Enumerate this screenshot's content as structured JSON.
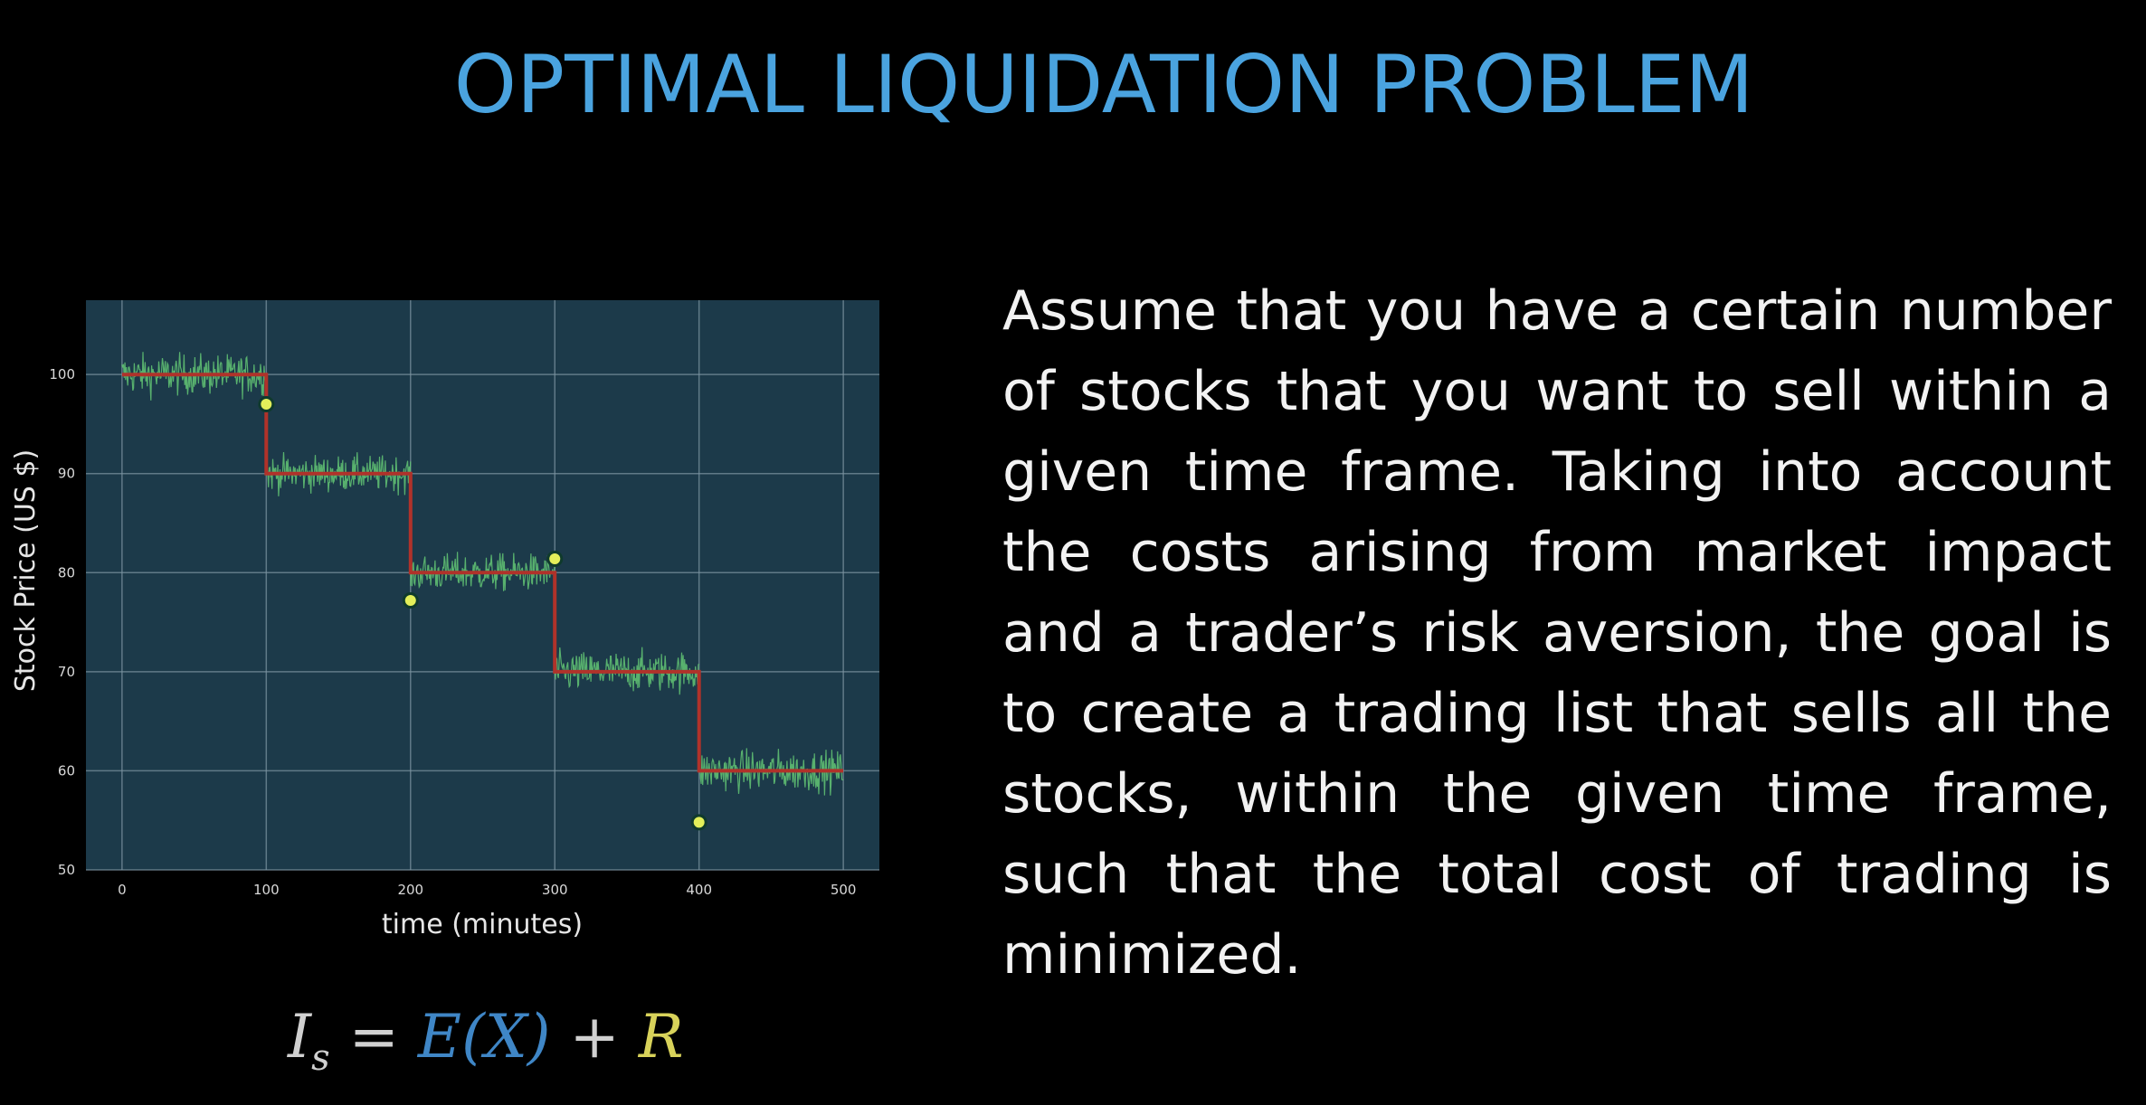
{
  "title": "OPTIMAL LIQUIDATION PROBLEM",
  "paragraph": "Assume that you have a certain number of stocks that you want to sell within a given time frame. Taking into account the costs arising from market impact and a trader’s risk aversion, the goal is to create a trading list that sells all the stocks, within the given time frame, such that the total cost of trading is minimized.",
  "formula": {
    "lhs": "I",
    "lhs_sub": "s",
    "equals": "=",
    "expected": "E(X)",
    "plus": "+",
    "risk": "R"
  },
  "chart_data": {
    "type": "line",
    "xlabel": "time (minutes)",
    "ylabel": "Stock Price (US $)",
    "xlim": [
      -25,
      525
    ],
    "ylim": [
      50,
      107.5
    ],
    "xticks": [
      0,
      100,
      200,
      300,
      400,
      500
    ],
    "yticks": [
      50,
      60,
      70,
      80,
      90,
      100
    ],
    "grid": true,
    "colors": {
      "plot_background": "#1c3a4a",
      "grid": "#7d96a3",
      "noisy_price": "#63c774",
      "step_price": "#b0322a",
      "markers_fill": "#e3ef5a",
      "markers_edge": "#0f3a2c",
      "tick_text": "#d9d9d9"
    },
    "series": [
      {
        "type": "step",
        "x": [
          0,
          100,
          100,
          200,
          200,
          300,
          300,
          400,
          400,
          500
        ],
        "y": [
          100,
          100,
          90,
          90,
          80,
          80,
          70,
          70,
          60,
          60
        ]
      },
      {
        "type": "noisy",
        "segments": [
          {
            "x_start": 0,
            "x_end": 100,
            "mean": 100,
            "amplitude": 2.6
          },
          {
            "x_start": 100,
            "x_end": 200,
            "mean": 90,
            "amplitude": 2.3
          },
          {
            "x_start": 200,
            "x_end": 300,
            "mean": 80,
            "amplitude": 2.4
          },
          {
            "x_start": 300,
            "x_end": 400,
            "mean": 70,
            "amplitude": 2.6
          },
          {
            "x_start": 400,
            "x_end": 500,
            "mean": 60,
            "amplitude": 2.6
          }
        ]
      },
      {
        "type": "scatter",
        "x": [
          100,
          200,
          300,
          400
        ],
        "y": [
          97,
          77.2,
          81.4,
          54.8
        ]
      }
    ]
  }
}
